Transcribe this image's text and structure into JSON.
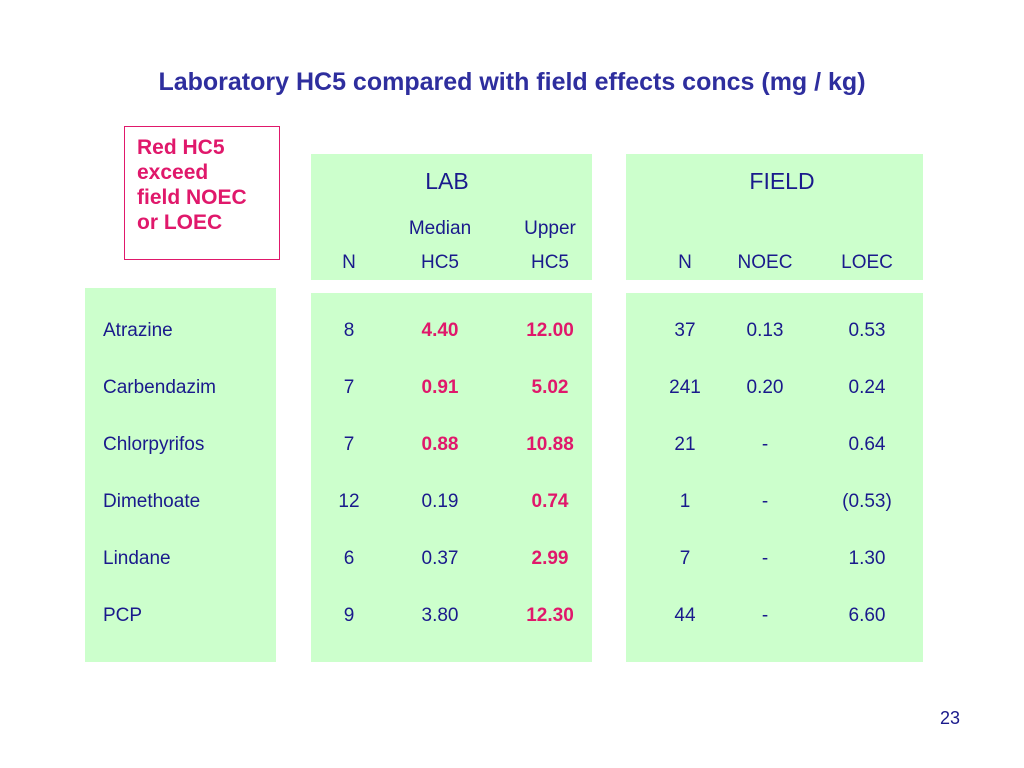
{
  "title": "Laboratory HC5 compared with field effects concs (mg / kg)",
  "note": {
    "lines": [
      "Red HC5",
      "exceed",
      "field NOEC",
      "or LOEC"
    ]
  },
  "lab_header": "LAB",
  "field_header": "FIELD",
  "columns": {
    "lab_n": [
      "",
      "N"
    ],
    "lab_median": [
      "Median",
      "HC5"
    ],
    "lab_upper": [
      "Upper",
      "HC5"
    ],
    "field_n": [
      "",
      "N"
    ],
    "field_noec": [
      "",
      "NOEC"
    ],
    "field_loec": [
      "",
      "LOEC"
    ]
  },
  "rows": [
    {
      "chemical": "Atrazine",
      "lab_n": "8",
      "median_hc5": "4.40",
      "upper_hc5": "12.00",
      "field_n": "37",
      "noec": "0.13",
      "loec": "0.53"
    },
    {
      "chemical": "Carbendazim",
      "lab_n": "7",
      "median_hc5": "0.91",
      "upper_hc5": "5.02",
      "field_n": "241",
      "noec": "0.20",
      "loec": "0.24"
    },
    {
      "chemical": "Chlorpyrifos",
      "lab_n": "7",
      "median_hc5": "0.88",
      "upper_hc5": "10.88",
      "field_n": "21",
      "noec": "-",
      "loec": "0.64"
    },
    {
      "chemical": "Dimethoate",
      "lab_n": "12",
      "median_hc5": "0.19",
      "upper_hc5": "0.74",
      "field_n": "1",
      "noec": "-",
      "loec": "(0.53)"
    },
    {
      "chemical": "Lindane",
      "lab_n": "6",
      "median_hc5": "0.37",
      "upper_hc5": "2.99",
      "field_n": "7",
      "noec": "-",
      "loec": "1.30"
    },
    {
      "chemical": "PCP",
      "lab_n": "9",
      "median_hc5": "3.80",
      "upper_hc5": "12.30",
      "field_n": "44",
      "noec": "-",
      "loec": "6.60"
    }
  ],
  "red_flags": {
    "median_hc5": [
      true,
      true,
      true,
      false,
      false,
      false
    ],
    "upper_hc5": [
      true,
      true,
      true,
      true,
      true,
      true
    ]
  },
  "page_number": "23",
  "colors": {
    "text": "#1a1a8c",
    "highlight": "#e0186b",
    "panel": "#ccffcc"
  }
}
